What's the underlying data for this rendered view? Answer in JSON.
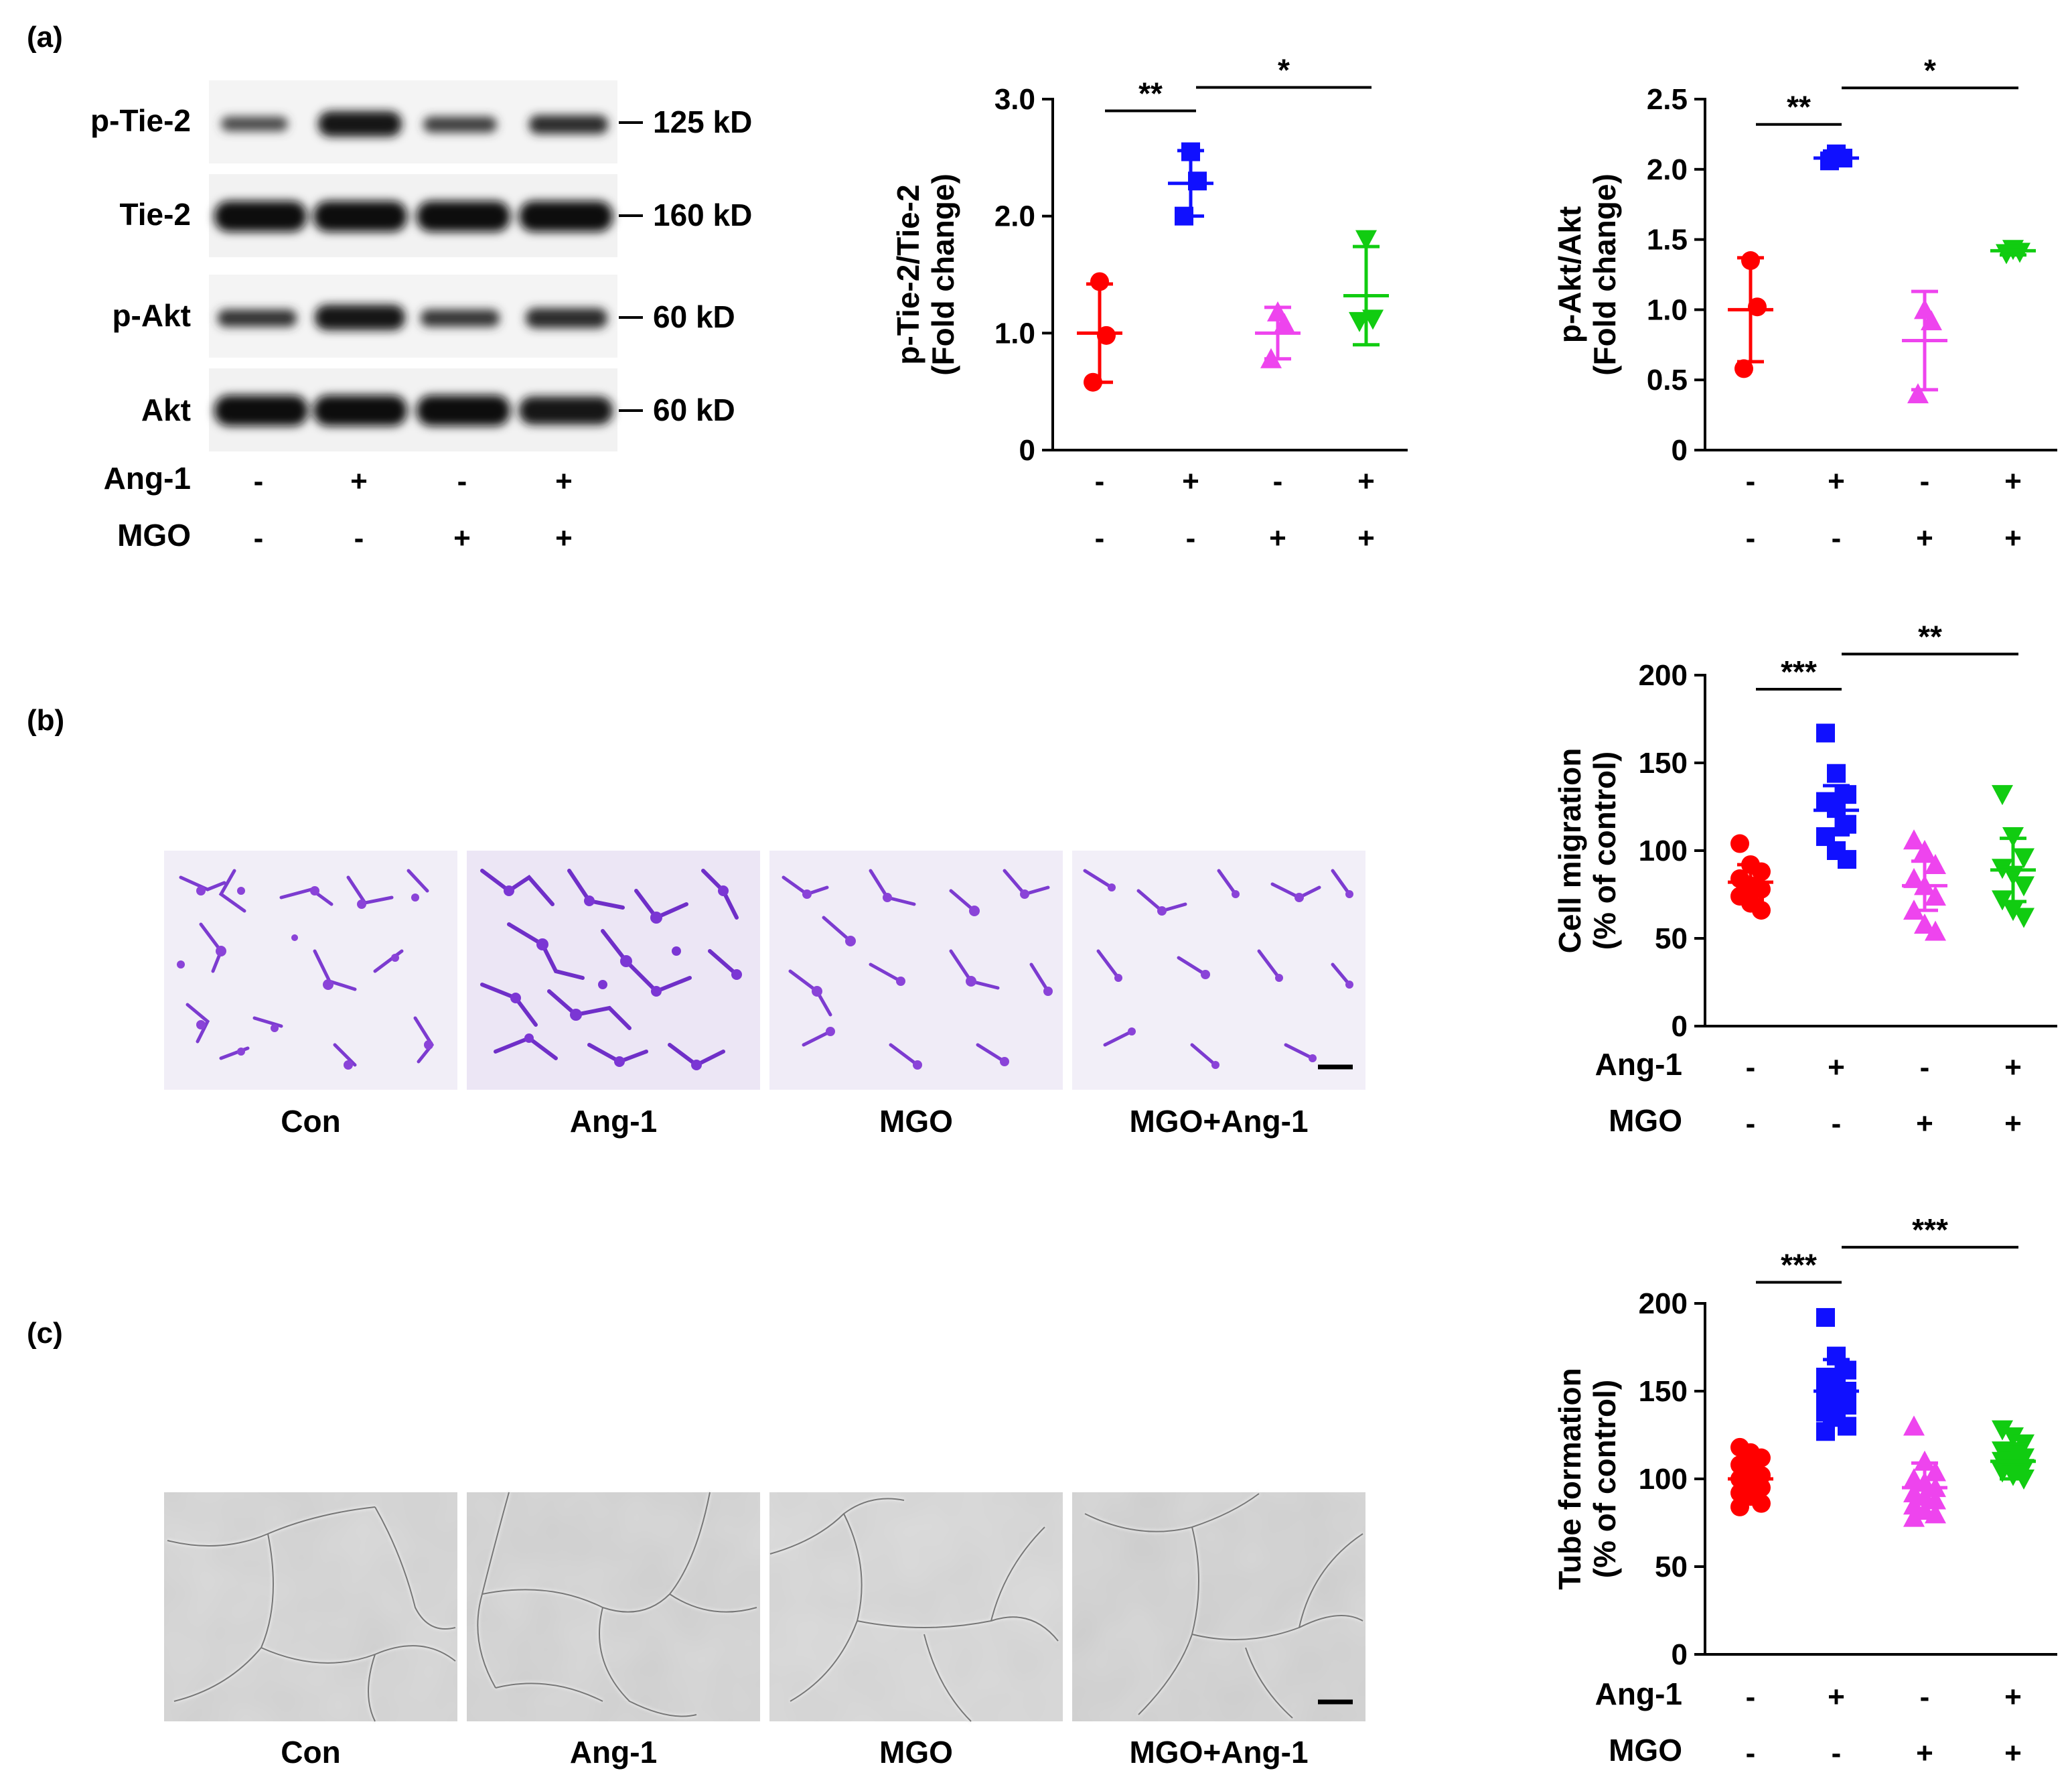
{
  "panel_labels": [
    "(a)",
    "(b)",
    "(c)"
  ],
  "western_blot": {
    "rows": [
      {
        "protein": "p-Tie-2",
        "marker": "125 kD"
      },
      {
        "protein": "Tie-2",
        "marker": "160 kD"
      },
      {
        "protein": "p-Akt",
        "marker": "60 kD"
      },
      {
        "protein": "Akt",
        "marker": "60 kD"
      }
    ],
    "treatments": [
      {
        "label": "Ang-1",
        "signs": [
          "-",
          "+",
          "-",
          "+"
        ]
      },
      {
        "label": "MGO",
        "signs": [
          "-",
          "-",
          "+",
          "+"
        ]
      }
    ]
  },
  "images_b": [
    "Con",
    "Ang-1",
    "MGO",
    "MGO+Ang-1"
  ],
  "images_c": [
    "Con",
    "Ang-1",
    "MGO",
    "MGO+Ang-1"
  ],
  "colors": {
    "con": "#ff0000",
    "ang1": "#1010ff",
    "mgo": "#ee44ee",
    "mgo_ang1": "#11cc11"
  },
  "chart_data": [
    {
      "id": "ptie2",
      "type": "scatter",
      "ylabel": [
        "p-Tie-2/Tie-2",
        "(Fold change)"
      ],
      "ylim": [
        0,
        3.0
      ],
      "yticks": [
        {
          "v": 0,
          "label": "0"
        },
        {
          "v": 1,
          "label": "1.0"
        },
        {
          "v": 2,
          "label": "2.0"
        },
        {
          "v": 3,
          "label": "3.0"
        }
      ],
      "treatments": [
        {
          "label": "",
          "signs": [
            "-",
            "+",
            "-",
            "+"
          ]
        },
        {
          "label": "",
          "signs": [
            "-",
            "-",
            "+",
            "+"
          ]
        }
      ],
      "groups": [
        {
          "name": "Con",
          "marker": "circle",
          "mean": 1.0,
          "sd": 0.42,
          "points": [
            1.44,
            0.98,
            0.58
          ]
        },
        {
          "name": "Ang-1",
          "marker": "square",
          "mean": 2.28,
          "sd": 0.28,
          "points": [
            2.55,
            2.3,
            2.0
          ]
        },
        {
          "name": "MGO",
          "marker": "triangle-up",
          "mean": 1.0,
          "sd": 0.22,
          "points": [
            1.18,
            1.08,
            0.78
          ]
        },
        {
          "name": "MGO+Ang-1",
          "marker": "triangle-down",
          "mean": 1.32,
          "sd": 0.42,
          "points": [
            1.8,
            1.12,
            1.1
          ]
        }
      ],
      "significance": [
        {
          "from": 0,
          "to": 1,
          "y": 2.9,
          "label": "**"
        },
        {
          "from": 1,
          "to": 3,
          "y": 3.1,
          "label": "*"
        }
      ]
    },
    {
      "id": "pakt",
      "type": "scatter",
      "ylabel": [
        "p-Akt/Akt",
        "(Fold change)"
      ],
      "ylim": [
        0,
        2.5
      ],
      "yticks": [
        {
          "v": 0,
          "label": "0"
        },
        {
          "v": 0.5,
          "label": "0.5"
        },
        {
          "v": 1.0,
          "label": "1.0"
        },
        {
          "v": 1.5,
          "label": "1.5"
        },
        {
          "v": 2.0,
          "label": "2.0"
        },
        {
          "v": 2.5,
          "label": "2.5"
        }
      ],
      "treatments": [
        {
          "label": "",
          "signs": [
            "-",
            "+",
            "-",
            "+"
          ]
        },
        {
          "label": "",
          "signs": [
            "-",
            "-",
            "+",
            "+"
          ]
        }
      ],
      "groups": [
        {
          "name": "Con",
          "marker": "circle",
          "mean": 1.0,
          "sd": 0.37,
          "points": [
            1.35,
            1.02,
            0.58
          ]
        },
        {
          "name": "Ang-1",
          "marker": "square",
          "mean": 2.08,
          "sd": 0.05,
          "points": [
            2.11,
            2.08,
            2.06
          ]
        },
        {
          "name": "MGO",
          "marker": "triangle-up",
          "mean": 0.78,
          "sd": 0.35,
          "points": [
            1.0,
            0.92,
            0.4
          ]
        },
        {
          "name": "MGO+Ang-1",
          "marker": "triangle-down",
          "mean": 1.42,
          "sd": 0.03,
          "points": [
            1.43,
            1.41,
            1.4
          ]
        }
      ],
      "significance": [
        {
          "from": 0,
          "to": 1,
          "y": 2.32,
          "label": "**"
        },
        {
          "from": 1,
          "to": 3,
          "y": 2.58,
          "label": "*"
        }
      ]
    },
    {
      "id": "migration",
      "type": "scatter",
      "ylabel": [
        "Cell migration",
        "(% of control)"
      ],
      "ylim": [
        0,
        200
      ],
      "yticks": [
        {
          "v": 0,
          "label": "0"
        },
        {
          "v": 50,
          "label": "50"
        },
        {
          "v": 100,
          "label": "100"
        },
        {
          "v": 150,
          "label": "150"
        },
        {
          "v": 200,
          "label": "200"
        }
      ],
      "treatments": [
        {
          "label": "Ang-1",
          "signs": [
            "-",
            "+",
            "-",
            "+"
          ]
        },
        {
          "label": "MGO",
          "signs": [
            "-",
            "-",
            "+",
            "+"
          ]
        }
      ],
      "groups": [
        {
          "name": "Con",
          "marker": "circle",
          "mean": 82,
          "sd": 10,
          "points": [
            104,
            92,
            88,
            84,
            80,
            78,
            74,
            70,
            66
          ]
        },
        {
          "name": "Ang-1",
          "marker": "square",
          "mean": 123,
          "sd": 14,
          "points": [
            167,
            144,
            132,
            128,
            124,
            115,
            108,
            100,
            95
          ]
        },
        {
          "name": "MGO",
          "marker": "triangle-up",
          "mean": 80,
          "sd": 14,
          "points": [
            106,
            100,
            92,
            84,
            80,
            74,
            66,
            58,
            54
          ]
        },
        {
          "name": "MGO+Ang-1",
          "marker": "triangle-down",
          "mean": 89,
          "sd": 18,
          "points": [
            132,
            108,
            96,
            90,
            86,
            80,
            72,
            66,
            62
          ]
        }
      ],
      "significance": [
        {
          "from": 0,
          "to": 1,
          "y": 192,
          "label": "***"
        },
        {
          "from": 1,
          "to": 3,
          "y": 212,
          "label": "**"
        }
      ]
    },
    {
      "id": "tube",
      "type": "scatter",
      "ylabel": [
        "Tube formation",
        "(% of control)"
      ],
      "ylim": [
        0,
        200
      ],
      "yticks": [
        {
          "v": 0,
          "label": "0"
        },
        {
          "v": 50,
          "label": "50"
        },
        {
          "v": 100,
          "label": "100"
        },
        {
          "v": 150,
          "label": "150"
        },
        {
          "v": 200,
          "label": "200"
        }
      ],
      "treatments": [
        {
          "label": "Ang-1",
          "signs": [
            "-",
            "+",
            "-",
            "+"
          ]
        },
        {
          "label": "MGO",
          "signs": [
            "-",
            "-",
            "+",
            "+"
          ]
        }
      ],
      "groups": [
        {
          "name": "Con",
          "marker": "circle",
          "mean": 100,
          "sd": 12,
          "points": [
            118,
            115,
            112,
            108,
            105,
            102,
            100,
            98,
            95,
            92,
            90,
            86,
            84
          ]
        },
        {
          "name": "Ang-1",
          "marker": "square",
          "mean": 150,
          "sd": 18,
          "points": [
            192,
            170,
            162,
            158,
            154,
            150,
            148,
            145,
            142,
            138,
            135,
            130,
            127
          ]
        },
        {
          "name": "MGO",
          "marker": "triangle-up",
          "mean": 95,
          "sd": 14,
          "points": [
            130,
            110,
            104,
            100,
            98,
            95,
            92,
            90,
            88,
            85,
            82,
            80,
            78
          ]
        },
        {
          "name": "MGO+Ang-1",
          "marker": "triangle-down",
          "mean": 110,
          "sd": 10,
          "points": [
            128,
            124,
            120,
            116,
            114,
            112,
            110,
            108,
            106,
            104,
            102,
            100
          ]
        }
      ],
      "significance": [
        {
          "from": 0,
          "to": 1,
          "y": 212,
          "label": "***"
        },
        {
          "from": 1,
          "to": 3,
          "y": 232,
          "label": "***"
        }
      ]
    }
  ]
}
